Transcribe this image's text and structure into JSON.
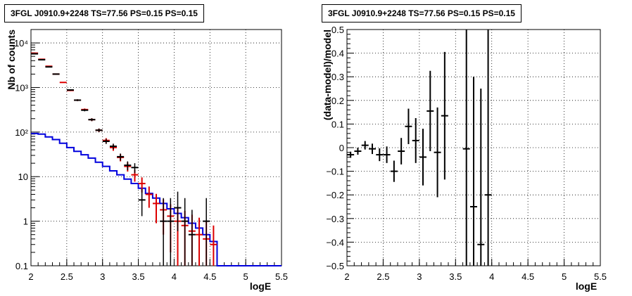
{
  "chart_data": [
    {
      "type": "histogram",
      "title": "3FGL J0910.9+2248 TS=77.56 PS=0.15 PS=0.15",
      "xlabel": "logE",
      "ylabel": "Nb of counts",
      "xlim": [
        2,
        5.5
      ],
      "ylim": [
        0.1,
        20000
      ],
      "yscale": "log",
      "grid": true,
      "x_ticks": [
        "2",
        "2.5",
        "3",
        "3.5",
        "4",
        "4.5",
        "5",
        "5.5"
      ],
      "y_ticks": [
        "0.1",
        "1",
        "10",
        "10²",
        "10³",
        "10⁴"
      ],
      "colors": {
        "data": "#000000",
        "model": "#dd0000",
        "background": "#0000dd"
      },
      "series": [
        {
          "role": "data",
          "x": [
            2.05,
            2.15,
            2.25,
            2.35,
            2.55,
            2.65,
            2.75,
            2.85,
            2.95,
            3.05,
            3.15,
            3.25,
            3.35,
            3.45,
            3.55,
            3.65,
            3.75,
            3.85,
            3.95,
            4.05,
            4.15,
            4.25,
            4.35,
            4.45,
            4.55
          ],
          "y": [
            5700,
            4200,
            2900,
            2000,
            880,
            520,
            310,
            190,
            110,
            62,
            48,
            28,
            18,
            16,
            3,
            0,
            0,
            1,
            1,
            2,
            1,
            0.5,
            0,
            1,
            0
          ],
          "err_lo": [
            75,
            65,
            54,
            45,
            30,
            23,
            18,
            14,
            10,
            8,
            7,
            5,
            4,
            4,
            1.7,
            0,
            0,
            0.9,
            0.9,
            1.4,
            0.9,
            0.4,
            0,
            0.9,
            0
          ],
          "err_hi": [
            75,
            65,
            54,
            45,
            30,
            23,
            18,
            14,
            10,
            8,
            7,
            5,
            4,
            4,
            2.3,
            0,
            0,
            2.3,
            2.3,
            2.6,
            2.3,
            1.3,
            0,
            2.3,
            0
          ]
        },
        {
          "role": "model",
          "x": [
            2.05,
            2.15,
            2.25,
            2.35,
            2.45,
            2.55,
            2.65,
            2.75,
            2.85,
            2.95,
            3.05,
            3.15,
            3.25,
            3.35,
            3.45,
            3.55,
            3.65,
            3.75,
            3.85,
            3.95,
            4.05,
            4.15,
            4.25,
            4.35,
            4.45,
            4.55
          ],
          "y": [
            5900,
            4300,
            3000,
            2000,
            1300,
            860,
            520,
            320,
            190,
            110,
            65,
            45,
            27,
            17,
            11,
            7,
            4,
            2.5,
            1.8,
            1.3,
            1,
            0.8,
            0.6,
            0.5,
            0.4,
            0.3
          ],
          "err": [
            77,
            66,
            55,
            45,
            36,
            29,
            23,
            18,
            14,
            10,
            8,
            7,
            5,
            4,
            3.3,
            2.6,
            2,
            1.6,
            1.3,
            1.1,
            1,
            0.9,
            0.8,
            0.7,
            0.6,
            0.5
          ]
        },
        {
          "role": "background",
          "x_edges": [
            2.0,
            2.1,
            2.2,
            2.3,
            2.4,
            2.5,
            2.6,
            2.7,
            2.8,
            2.9,
            3.0,
            3.1,
            3.2,
            3.3,
            3.4,
            3.5,
            3.6,
            3.7,
            3.8,
            3.9,
            4.0,
            4.1,
            4.2,
            4.3,
            4.4,
            4.5,
            4.6,
            5.5
          ],
          "y": [
            93,
            90,
            78,
            68,
            56,
            45,
            37,
            31,
            26,
            21,
            17,
            13.5,
            11,
            8.8,
            7,
            5.5,
            4.2,
            3.3,
            2.5,
            1.9,
            1.5,
            1.2,
            0.9,
            0.7,
            0.5,
            0.35,
            0.1
          ]
        }
      ]
    },
    {
      "type": "scatter",
      "title": "3FGL J0910.9+2248 TS=77.56 PS=0.15 PS=0.15",
      "xlabel": "logE",
      "ylabel": "(data-model)/model",
      "xlim": [
        2,
        5.5
      ],
      "ylim": [
        -0.5,
        0.5
      ],
      "grid": true,
      "x_ticks": [
        "2",
        "2.5",
        "3",
        "3.5",
        "4",
        "4.5",
        "5",
        "5.5"
      ],
      "y_ticks": [
        "−0.5",
        "−0.4",
        "−0.3",
        "−0.2",
        "−0.1",
        "0",
        "0.1",
        "0.2",
        "0.3",
        "0.4",
        "0.5"
      ],
      "series": [
        {
          "role": "residual",
          "x": [
            2.05,
            2.15,
            2.25,
            2.35,
            2.45,
            2.55,
            2.65,
            2.75,
            2.85,
            2.95,
            3.05,
            3.15,
            3.25,
            3.35,
            3.65,
            3.75,
            3.85,
            3.95
          ],
          "y": [
            -0.03,
            -0.015,
            0.01,
            -0.005,
            -0.03,
            -0.03,
            -0.1,
            -0.015,
            0.09,
            0.03,
            -0.04,
            0.155,
            -0.02,
            0.135,
            -0.005,
            -0.25,
            -0.41,
            -0.2
          ],
          "err": [
            0.013,
            0.015,
            0.018,
            0.022,
            0.027,
            0.035,
            0.045,
            0.056,
            0.075,
            0.095,
            0.12,
            0.17,
            0.19,
            0.27,
            0.7,
            0.55,
            0.66,
            0.7
          ]
        }
      ]
    }
  ]
}
